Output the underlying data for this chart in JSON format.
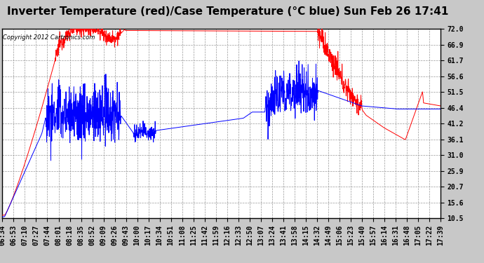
{
  "title": "Inverter Temperature (red)/Case Temperature (°C blue) Sun Feb 26 17:41",
  "copyright": "Copyright 2012 Cartronics.com",
  "background_color": "#c8c8c8",
  "plot_bg_color": "#ffffff",
  "grid_color": "#999999",
  "yticks": [
    10.5,
    15.6,
    20.7,
    25.9,
    31.0,
    36.1,
    41.2,
    46.4,
    51.5,
    56.6,
    61.7,
    66.9,
    72.0
  ],
  "ymin": 10.5,
  "ymax": 72.0,
  "red_color": "#ff0000",
  "blue_color": "#0000ff",
  "title_fontsize": 11,
  "copyright_fontsize": 6,
  "tick_fontsize": 7,
  "xtick_labels": [
    "06:34",
    "06:53",
    "07:10",
    "07:27",
    "07:44",
    "08:01",
    "08:18",
    "08:35",
    "08:52",
    "09:09",
    "09:26",
    "09:43",
    "10:00",
    "10:17",
    "10:34",
    "10:51",
    "11:08",
    "11:25",
    "11:42",
    "11:59",
    "12:16",
    "12:33",
    "12:50",
    "13:07",
    "13:24",
    "13:41",
    "13:58",
    "14:15",
    "14:32",
    "14:49",
    "15:06",
    "15:23",
    "15:40",
    "15:57",
    "16:14",
    "16:31",
    "16:48",
    "17:05",
    "17:22",
    "17:39"
  ]
}
